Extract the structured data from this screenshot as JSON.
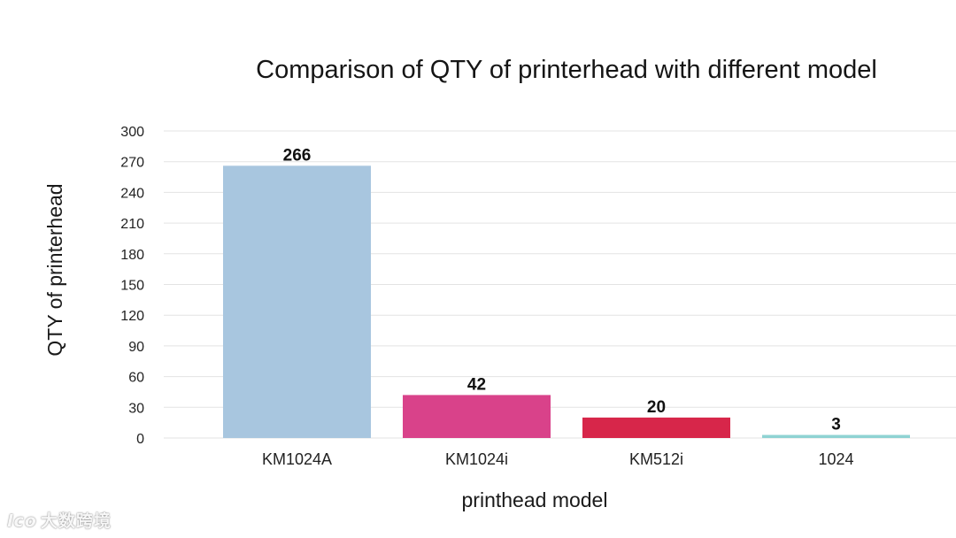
{
  "chart_data": {
    "type": "bar",
    "title": "Comparison of QTY of printerhead with different model",
    "xlabel": "printhead model",
    "ylabel": "QTY of printerhead",
    "categories": [
      "KM1024A",
      "KM1024i",
      "KM512i",
      "1024"
    ],
    "values": [
      266,
      42,
      20,
      3
    ],
    "data_labels": [
      "266",
      "42",
      "20",
      "3"
    ],
    "ylim": [
      0,
      300
    ],
    "yticks": [
      0,
      30,
      60,
      90,
      120,
      150,
      180,
      210,
      240,
      270,
      300
    ],
    "ytick_labels": [
      "0",
      "30",
      "60",
      "90",
      "120",
      "150",
      "180",
      "210",
      "240",
      "270",
      "300"
    ],
    "colors": [
      "#a8c6df",
      "#d9428a",
      "#d7264a",
      "#8fd3d3"
    ],
    "grid": true,
    "legend": false
  },
  "watermark": {
    "logo_text": "lco",
    "text": "大数跨境"
  }
}
